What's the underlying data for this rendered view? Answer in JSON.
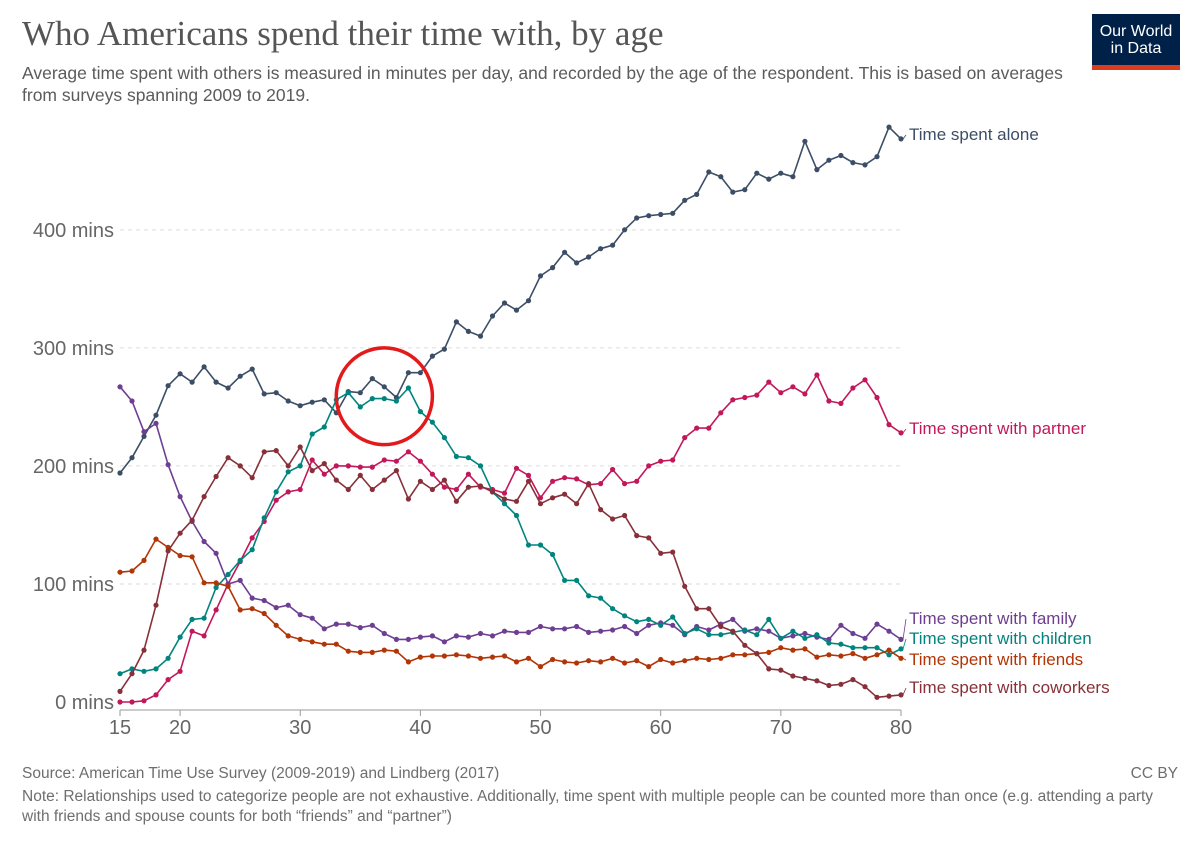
{
  "header": {
    "title": "Who Americans spend their time with, by age",
    "subtitle": "Average time spent with others is measured in minutes per day, and recorded by the age of the respondent. This is based on averages from surveys spanning 2009 to 2019."
  },
  "logo": {
    "line1": "Our World",
    "line2": "in Data",
    "bg_color": "#002147",
    "accent_color": "#dc3b1e"
  },
  "footer": {
    "source": "Source: American Time Use Survey (2009-2019) and Lindberg (2017)",
    "license": "CC BY",
    "note": "Note: Relationships used to categorize people are not exhaustive. Additionally, time spent with multiple people can be counted more than once (e.g. attending a party with friends and spouse counts for both “friends” and “partner”)"
  },
  "annotation": {
    "shape": "circle",
    "color": "#e31a1c",
    "x_range": [
      33,
      41
    ],
    "y_range": [
      218,
      300
    ]
  },
  "chart_data": {
    "type": "line",
    "title": "Who Americans spend their time with, by age",
    "xlabel": "",
    "ylabel": "",
    "xlim": [
      15,
      80
    ],
    "ylim": [
      0,
      480
    ],
    "x_ticks": [
      15,
      20,
      30,
      40,
      50,
      60,
      70,
      80
    ],
    "x_tick_labels": [
      "15",
      "20",
      "30",
      "40",
      "50",
      "60",
      "70",
      "80"
    ],
    "y_ticks": [
      0,
      100,
      200,
      300,
      400
    ],
    "y_tick_labels": [
      "0 mins",
      "100 mins",
      "200 mins",
      "300 mins",
      "400 mins"
    ],
    "grid": "horizontal dashed",
    "legend": "inline labels at right end of each line",
    "x": [
      15,
      16,
      17,
      18,
      19,
      20,
      21,
      22,
      23,
      24,
      25,
      26,
      27,
      28,
      29,
      30,
      31,
      32,
      33,
      34,
      35,
      36,
      37,
      38,
      39,
      40,
      41,
      42,
      43,
      44,
      45,
      46,
      47,
      48,
      49,
      50,
      51,
      52,
      53,
      54,
      55,
      56,
      57,
      58,
      59,
      60,
      61,
      62,
      63,
      64,
      65,
      66,
      67,
      68,
      69,
      70,
      71,
      72,
      73,
      74,
      75,
      76,
      77,
      78,
      79,
      80,
      81
    ],
    "series": [
      {
        "name": "Time spent alone",
        "color": "#3c4e66",
        "values": [
          194,
          207,
          225,
          243,
          268,
          278,
          271,
          284,
          271,
          266,
          276,
          282,
          261,
          262,
          255,
          251,
          254,
          256,
          245,
          263,
          262,
          274,
          267,
          258,
          279,
          279,
          293,
          299,
          322,
          314,
          310,
          327,
          338,
          332,
          340,
          361,
          368,
          381,
          372,
          377,
          384,
          387,
          400,
          410,
          412,
          413,
          414,
          425,
          430,
          449,
          445,
          432,
          434,
          448,
          443,
          448,
          445,
          475,
          451,
          459,
          463,
          457,
          455,
          462,
          487,
          477,
          478
        ]
      },
      {
        "name": "Time spent with partner",
        "color": "#c2185b",
        "values": [
          0,
          0,
          1,
          6,
          19,
          26,
          60,
          56,
          78,
          100,
          119,
          139,
          153,
          171,
          178,
          180,
          205,
          193,
          200,
          200,
          199,
          199,
          205,
          204,
          212,
          204,
          193,
          182,
          180,
          193,
          182,
          180,
          177,
          198,
          192,
          173,
          187,
          190,
          189,
          184,
          185,
          197,
          185,
          187,
          200,
          204,
          205,
          224,
          232,
          232,
          245,
          256,
          258,
          260,
          271,
          262,
          267,
          261,
          277,
          255,
          253,
          266,
          273,
          258,
          235,
          228,
          228
        ]
      },
      {
        "name": "Time spent with family",
        "color": "#6d3e91",
        "values": [
          267,
          255,
          229,
          236,
          201,
          174,
          153,
          136,
          126,
          100,
          103,
          88,
          86,
          80,
          82,
          74,
          71,
          62,
          66,
          66,
          63,
          65,
          58,
          53,
          53,
          55,
          56,
          51,
          56,
          55,
          58,
          56,
          60,
          59,
          59,
          64,
          62,
          62,
          64,
          59,
          60,
          61,
          64,
          58,
          65,
          67,
          65,
          57,
          64,
          61,
          66,
          70,
          60,
          62,
          60,
          54,
          56,
          58,
          55,
          53,
          65,
          58,
          54,
          66,
          60,
          53,
          66
        ]
      },
      {
        "name": "Time spent with children",
        "color": "#00847e",
        "values": [
          24,
          28,
          26,
          28,
          37,
          55,
          70,
          71,
          97,
          108,
          120,
          129,
          156,
          178,
          195,
          200,
          227,
          233,
          256,
          262,
          250,
          257,
          257,
          255,
          266,
          246,
          237,
          224,
          208,
          207,
          200,
          178,
          168,
          158,
          133,
          133,
          125,
          103,
          103,
          90,
          88,
          79,
          73,
          68,
          70,
          65,
          72,
          58,
          62,
          57,
          57,
          59,
          61,
          57,
          70,
          54,
          60,
          54,
          57,
          50,
          49,
          46,
          46,
          46,
          40,
          45,
          45
        ]
      },
      {
        "name": "Time spent with friends",
        "color": "#b13507",
        "values": [
          110,
          111,
          120,
          138,
          131,
          124,
          123,
          101,
          101,
          98,
          78,
          79,
          75,
          65,
          56,
          53,
          51,
          49,
          49,
          43,
          42,
          42,
          44,
          43,
          34,
          38,
          39,
          39,
          40,
          39,
          37,
          38,
          39,
          34,
          37,
          30,
          36,
          34,
          33,
          35,
          34,
          37,
          33,
          35,
          30,
          36,
          33,
          35,
          37,
          36,
          37,
          40,
          40,
          41,
          42,
          46,
          44,
          45,
          38,
          40,
          39,
          41,
          37,
          40,
          44,
          37,
          37
        ]
      },
      {
        "name": "Time spent with coworkers",
        "color": "#883039",
        "values": [
          9,
          24,
          44,
          82,
          128,
          143,
          154,
          174,
          191,
          207,
          200,
          190,
          212,
          213,
          200,
          216,
          196,
          202,
          188,
          180,
          192,
          180,
          188,
          196,
          172,
          187,
          180,
          188,
          170,
          182,
          183,
          178,
          172,
          170,
          187,
          168,
          173,
          176,
          168,
          185,
          163,
          155,
          158,
          141,
          139,
          126,
          127,
          98,
          79,
          79,
          64,
          60,
          48,
          41,
          28,
          27,
          22,
          20,
          18,
          14,
          15,
          19,
          13,
          4,
          5,
          6,
          6
        ]
      }
    ]
  }
}
